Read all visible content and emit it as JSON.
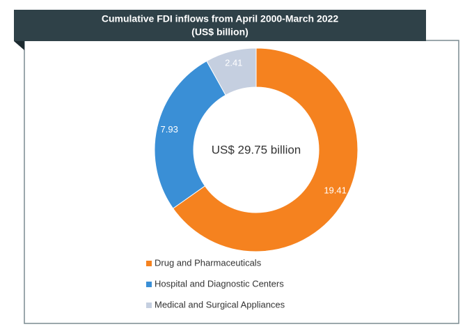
{
  "chart_data": {
    "type": "pie",
    "donut": true,
    "title": "Cumulative FDI inflows from April 2000-March 2022",
    "subtitle": "(US$ billion)",
    "center_label": "US$ 29.75 billion",
    "categories": [
      "Drug and Pharmaceuticals",
      "Hospital and Diagnostic Centers",
      "Medical and Surgical Appliances"
    ],
    "values": [
      19.41,
      7.93,
      2.41
    ],
    "colors": [
      "#f5821f",
      "#3a8fd6",
      "#c5cfe0"
    ]
  }
}
